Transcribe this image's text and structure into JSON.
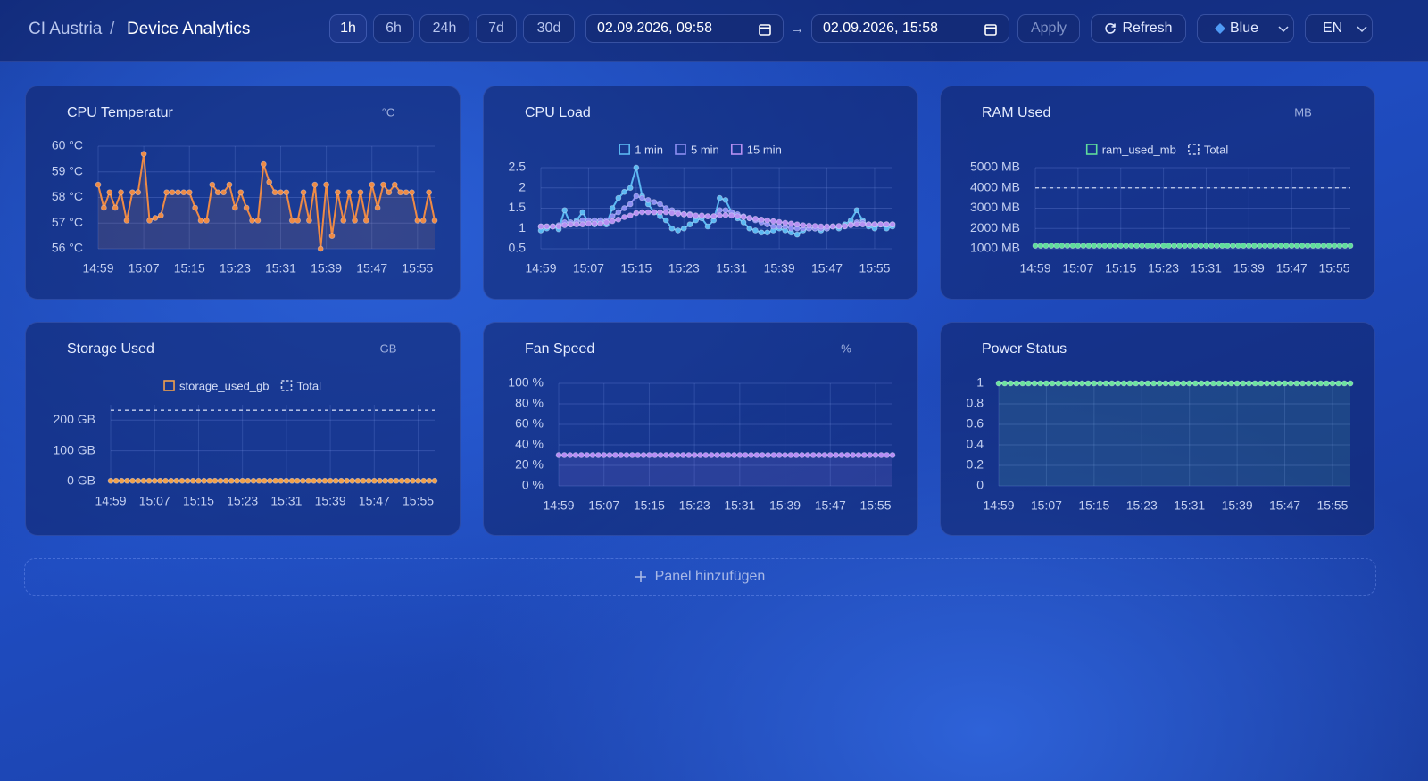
{
  "header": {
    "org": "CI Austria",
    "separator": "/",
    "page": "Device Analytics",
    "ranges": [
      "1h",
      "6h",
      "24h",
      "7d",
      "30d"
    ],
    "start": "02.09.2026, 09:58",
    "arrow": "→",
    "end": "02.09.2026, 15:58",
    "apply": "Apply",
    "refresh": "Refresh",
    "theme": "Blue",
    "language": "EN"
  },
  "add_panel": "Panel hinzufügen",
  "chart_data": [
    {
      "type": "line",
      "title": "CPU Temperatur",
      "unit": "°C",
      "area": true,
      "grid": true,
      "categories": [
        "14:59",
        null,
        null,
        null,
        null,
        null,
        null,
        null,
        "15:07",
        null,
        null,
        null,
        null,
        null,
        null,
        null,
        "15:15",
        null,
        null,
        null,
        null,
        null,
        null,
        null,
        "15:23",
        null,
        null,
        null,
        null,
        null,
        null,
        null,
        "15:31",
        null,
        null,
        null,
        null,
        null,
        null,
        null,
        "15:39",
        null,
        null,
        null,
        null,
        null,
        null,
        null,
        "15:47",
        null,
        null,
        null,
        null,
        null,
        null,
        null,
        "15:55",
        null,
        null,
        null
      ],
      "ylim": [
        56,
        60
      ],
      "yticks": [
        {
          "value": 56,
          "label": "56 °C"
        },
        {
          "value": 57,
          "label": "57 °C"
        },
        {
          "value": 58,
          "label": "58 °C"
        },
        {
          "value": 59,
          "label": "59 °C"
        },
        {
          "value": 60,
          "label": "60 °C"
        }
      ],
      "series": [
        {
          "color": "#ee8a45",
          "values": [
            58.5,
            57.6,
            58.2,
            57.6,
            58.2,
            57.1,
            58.2,
            58.2,
            59.7,
            57.1,
            57.2,
            57.3,
            58.2,
            58.2,
            58.2,
            58.2,
            58.2,
            57.6,
            57.1,
            57.1,
            58.5,
            58.2,
            58.2,
            58.5,
            57.6,
            58.2,
            57.6,
            57.1,
            57.1,
            59.3,
            58.6,
            58.2,
            58.2,
            58.2,
            57.1,
            57.1,
            58.2,
            57.1,
            58.5,
            56.0,
            58.5,
            56.5,
            58.2,
            57.1,
            58.2,
            57.1,
            58.2,
            57.1,
            58.5,
            57.6,
            58.5,
            58.2,
            58.5,
            58.2,
            58.2,
            58.2,
            57.1,
            57.1,
            58.2,
            57.1
          ]
        }
      ]
    },
    {
      "type": "line",
      "title": "CPU Load",
      "area": false,
      "grid": true,
      "categories": [
        "14:59",
        null,
        null,
        null,
        null,
        null,
        null,
        null,
        "15:07",
        null,
        null,
        null,
        null,
        null,
        null,
        null,
        "15:15",
        null,
        null,
        null,
        null,
        null,
        null,
        null,
        "15:23",
        null,
        null,
        null,
        null,
        null,
        null,
        null,
        "15:31",
        null,
        null,
        null,
        null,
        null,
        null,
        null,
        "15:39",
        null,
        null,
        null,
        null,
        null,
        null,
        null,
        "15:47",
        null,
        null,
        null,
        null,
        null,
        null,
        null,
        "15:55",
        null,
        null,
        null
      ],
      "ylim": [
        0.5,
        2.5
      ],
      "yticks": [
        0.5,
        1,
        1.5,
        2,
        2.5
      ],
      "series": [
        {
          "name": "1 min",
          "color": "#5cb8f2",
          "values": [
            0.95,
            1.0,
            1.05,
            0.98,
            1.45,
            1.1,
            1.2,
            1.4,
            1.15,
            1.1,
            1.2,
            1.1,
            1.5,
            1.75,
            1.9,
            2.0,
            2.5,
            1.8,
            1.6,
            1.4,
            1.3,
            1.2,
            1.0,
            0.95,
            1.0,
            1.1,
            1.2,
            1.25,
            1.05,
            1.2,
            1.75,
            1.7,
            1.4,
            1.25,
            1.15,
            1.0,
            0.95,
            0.9,
            0.9,
            0.95,
            1.0,
            0.95,
            0.9,
            0.85,
            0.95,
            1.0,
            1.0,
            0.95,
            1.0,
            1.05,
            1.0,
            1.1,
            1.2,
            1.45,
            1.2,
            1.05,
            1.0,
            1.1,
            1.0,
            1.05
          ]
        },
        {
          "name": "5 min",
          "color": "#8c8ef2",
          "values": [
            1.05,
            1.05,
            1.05,
            1.08,
            1.15,
            1.15,
            1.15,
            1.2,
            1.2,
            1.2,
            1.2,
            1.2,
            1.3,
            1.4,
            1.5,
            1.6,
            1.8,
            1.75,
            1.7,
            1.65,
            1.6,
            1.5,
            1.45,
            1.4,
            1.35,
            1.35,
            1.3,
            1.3,
            1.3,
            1.3,
            1.45,
            1.45,
            1.4,
            1.35,
            1.3,
            1.25,
            1.2,
            1.15,
            1.1,
            1.05,
            1.05,
            1.05,
            1.0,
            1.0,
            1.0,
            1.0,
            1.0,
            1.0,
            1.0,
            1.05,
            1.05,
            1.05,
            1.1,
            1.15,
            1.15,
            1.1,
            1.1,
            1.1,
            1.1,
            1.1
          ]
        },
        {
          "name": "15 min",
          "color": "#b690f2",
          "values": [
            1.05,
            1.05,
            1.05,
            1.05,
            1.08,
            1.1,
            1.1,
            1.1,
            1.12,
            1.12,
            1.12,
            1.15,
            1.18,
            1.22,
            1.28,
            1.32,
            1.38,
            1.4,
            1.4,
            1.4,
            1.4,
            1.4,
            1.38,
            1.36,
            1.35,
            1.33,
            1.32,
            1.32,
            1.3,
            1.3,
            1.32,
            1.33,
            1.32,
            1.3,
            1.28,
            1.26,
            1.24,
            1.22,
            1.2,
            1.18,
            1.16,
            1.14,
            1.12,
            1.1,
            1.08,
            1.07,
            1.06,
            1.05,
            1.05,
            1.05,
            1.06,
            1.06,
            1.08,
            1.1,
            1.1,
            1.1,
            1.1,
            1.1,
            1.1,
            1.1
          ]
        }
      ]
    },
    {
      "type": "line",
      "title": "RAM Used",
      "unit": "MB",
      "area": false,
      "grid": true,
      "categories": [
        "14:59",
        null,
        null,
        null,
        null,
        null,
        null,
        null,
        "15:07",
        null,
        null,
        null,
        null,
        null,
        null,
        null,
        "15:15",
        null,
        null,
        null,
        null,
        null,
        null,
        null,
        "15:23",
        null,
        null,
        null,
        null,
        null,
        null,
        null,
        "15:31",
        null,
        null,
        null,
        null,
        null,
        null,
        null,
        "15:39",
        null,
        null,
        null,
        null,
        null,
        null,
        null,
        "15:47",
        null,
        null,
        null,
        null,
        null,
        null,
        null,
        "15:55",
        null,
        null,
        null
      ],
      "ylim": [
        1000,
        5000
      ],
      "yticks": [
        {
          "value": 1000,
          "label": "1000 MB"
        },
        {
          "value": 2000,
          "label": "2000 MB"
        },
        {
          "value": 3000,
          "label": "3000 MB"
        },
        {
          "value": 4000,
          "label": "4000 MB"
        },
        {
          "value": 5000,
          "label": "5000 MB"
        }
      ],
      "total": {
        "name": "Total",
        "value": 4000,
        "color": "#c9d2ee"
      },
      "series": [
        {
          "name": "ram_used_mb",
          "color": "#5fdc9c",
          "values": [
            1150,
            1150,
            1150,
            1150,
            1150,
            1150,
            1150,
            1150,
            1150,
            1150,
            1150,
            1150,
            1150,
            1150,
            1150,
            1150,
            1150,
            1150,
            1150,
            1150,
            1150,
            1150,
            1150,
            1150,
            1150,
            1150,
            1150,
            1150,
            1150,
            1150,
            1150,
            1150,
            1150,
            1150,
            1150,
            1150,
            1150,
            1150,
            1150,
            1150,
            1150,
            1150,
            1150,
            1150,
            1150,
            1150,
            1150,
            1150,
            1150,
            1150,
            1150,
            1150,
            1150,
            1150,
            1150,
            1150,
            1150,
            1150,
            1150,
            1150
          ]
        }
      ]
    },
    {
      "type": "line",
      "title": "Storage Used",
      "unit": "GB",
      "area": false,
      "grid": true,
      "categories": [
        "14:59",
        null,
        null,
        null,
        null,
        null,
        null,
        null,
        "15:07",
        null,
        null,
        null,
        null,
        null,
        null,
        null,
        "15:15",
        null,
        null,
        null,
        null,
        null,
        null,
        null,
        "15:23",
        null,
        null,
        null,
        null,
        null,
        null,
        null,
        "15:31",
        null,
        null,
        null,
        null,
        null,
        null,
        null,
        "15:39",
        null,
        null,
        null,
        null,
        null,
        null,
        null,
        "15:47",
        null,
        null,
        null,
        null,
        null,
        null,
        null,
        "15:55",
        null,
        null,
        null
      ],
      "ylim": [
        0,
        250
      ],
      "yticks": [
        {
          "value": 0,
          "label": "0 GB"
        },
        {
          "value": 100,
          "label": "100 GB"
        },
        {
          "value": 200,
          "label": "200 GB"
        }
      ],
      "total": {
        "name": "Total",
        "value": 232,
        "color": "#c9d2ee"
      },
      "series": [
        {
          "name": "storage_used_gb",
          "color": "#f0a04c",
          "values": [
            2,
            2,
            2,
            2,
            2,
            2,
            2,
            2,
            2,
            2,
            2,
            2,
            2,
            2,
            2,
            2,
            2,
            2,
            2,
            2,
            2,
            2,
            2,
            2,
            2,
            2,
            2,
            2,
            2,
            2,
            2,
            2,
            2,
            2,
            2,
            2,
            2,
            2,
            2,
            2,
            2,
            2,
            2,
            2,
            2,
            2,
            2,
            2,
            2,
            2,
            2,
            2,
            2,
            2,
            2,
            2,
            2,
            2,
            2,
            2
          ]
        }
      ]
    },
    {
      "type": "line",
      "title": "Fan Speed",
      "unit": "%",
      "area": true,
      "grid": true,
      "categories": [
        "14:59",
        null,
        null,
        null,
        null,
        null,
        null,
        null,
        "15:07",
        null,
        null,
        null,
        null,
        null,
        null,
        null,
        "15:15",
        null,
        null,
        null,
        null,
        null,
        null,
        null,
        "15:23",
        null,
        null,
        null,
        null,
        null,
        null,
        null,
        "15:31",
        null,
        null,
        null,
        null,
        null,
        null,
        null,
        "15:39",
        null,
        null,
        null,
        null,
        null,
        null,
        null,
        "15:47",
        null,
        null,
        null,
        null,
        null,
        null,
        null,
        "15:55",
        null,
        null,
        null
      ],
      "ylim": [
        0,
        100
      ],
      "yticks": [
        {
          "value": 0,
          "label": "0 %"
        },
        {
          "value": 20,
          "label": "20 %"
        },
        {
          "value": 40,
          "label": "40 %"
        },
        {
          "value": 60,
          "label": "60 %"
        },
        {
          "value": 80,
          "label": "80 %"
        },
        {
          "value": 100,
          "label": "100 %"
        }
      ],
      "series": [
        {
          "color": "#b58cf6",
          "values": [
            30,
            30,
            30,
            30,
            30,
            30,
            30,
            30,
            30,
            30,
            30,
            30,
            30,
            30,
            30,
            30,
            30,
            30,
            30,
            30,
            30,
            30,
            30,
            30,
            30,
            30,
            30,
            30,
            30,
            30,
            30,
            30,
            30,
            30,
            30,
            30,
            30,
            30,
            30,
            30,
            30,
            30,
            30,
            30,
            30,
            30,
            30,
            30,
            30,
            30,
            30,
            30,
            30,
            30,
            30,
            30,
            30,
            30,
            30,
            30
          ]
        }
      ]
    },
    {
      "type": "line",
      "title": "Power Status",
      "area": true,
      "grid": true,
      "categories": [
        "14:59",
        null,
        null,
        null,
        null,
        null,
        null,
        null,
        "15:07",
        null,
        null,
        null,
        null,
        null,
        null,
        null,
        "15:15",
        null,
        null,
        null,
        null,
        null,
        null,
        null,
        "15:23",
        null,
        null,
        null,
        null,
        null,
        null,
        null,
        "15:31",
        null,
        null,
        null,
        null,
        null,
        null,
        null,
        "15:39",
        null,
        null,
        null,
        null,
        null,
        null,
        null,
        "15:47",
        null,
        null,
        null,
        null,
        null,
        null,
        null,
        "15:55",
        null,
        null,
        null
      ],
      "ylim": [
        0,
        1
      ],
      "yticks": [
        0,
        0.2,
        0.4,
        0.6,
        0.8,
        1
      ],
      "series": [
        {
          "color": "#6be39f",
          "values": [
            1,
            1,
            1,
            1,
            1,
            1,
            1,
            1,
            1,
            1,
            1,
            1,
            1,
            1,
            1,
            1,
            1,
            1,
            1,
            1,
            1,
            1,
            1,
            1,
            1,
            1,
            1,
            1,
            1,
            1,
            1,
            1,
            1,
            1,
            1,
            1,
            1,
            1,
            1,
            1,
            1,
            1,
            1,
            1,
            1,
            1,
            1,
            1,
            1,
            1,
            1,
            1,
            1,
            1,
            1,
            1,
            1,
            1,
            1,
            1
          ]
        }
      ]
    }
  ]
}
